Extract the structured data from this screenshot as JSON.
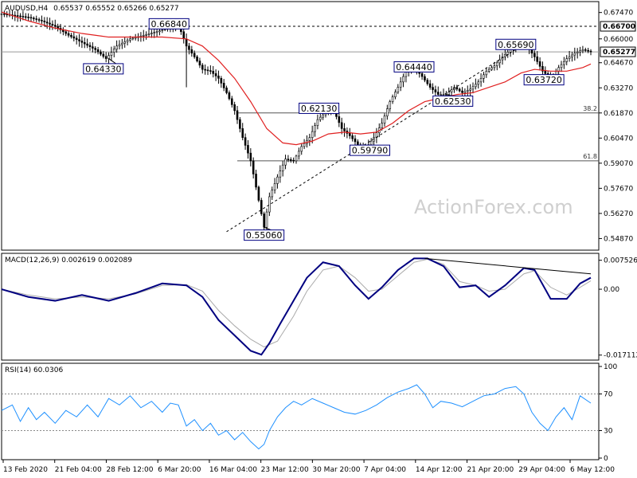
{
  "chart_data": {
    "type": "candlestick",
    "symbol": "AUDUSD,H4",
    "ohlc_header": "0.65537 0.65552 0.65266 0.65277",
    "watermark": "ActionForex.com",
    "x_ticks": [
      "13 Feb 2020",
      "21 Feb 04:00",
      "28 Feb 12:00",
      "6 Mar 20:00",
      "16 Mar 04:00",
      "23 Mar 12:00",
      "30 Mar 20:00",
      "7 Apr 04:00",
      "14 Apr 12:00",
      "21 Apr 20:00",
      "29 Apr 04:00",
      "6 May 12:00"
    ],
    "price_panel": {
      "ylim": [
        0.544,
        0.679
      ],
      "y_ticks": [
        "0.67470",
        "0.66000",
        "0.64670",
        "0.63270",
        "0.61870",
        "0.60470",
        "0.59070",
        "0.57670",
        "0.56270",
        "0.54870"
      ],
      "y_tick_values": [
        0.6747,
        0.66,
        0.6467,
        0.6327,
        0.6187,
        0.6047,
        0.5907,
        0.5767,
        0.5627,
        0.5487
      ],
      "current_price": "0.65277",
      "current_value": 0.65277,
      "resistance_label": "0.66700",
      "resistance_value": 0.667,
      "fib_levels": [
        {
          "label": "38.2",
          "value": 0.6187
        },
        {
          "label": "61.8",
          "value": 0.592
        }
      ],
      "close_path": [
        [
          0,
          0.674
        ],
        [
          10,
          0.673
        ],
        [
          20,
          0.672
        ],
        [
          30,
          0.67
        ],
        [
          40,
          0.667
        ],
        [
          50,
          0.662
        ],
        [
          60,
          0.658
        ],
        [
          70,
          0.654
        ],
        [
          78,
          0.649
        ],
        [
          86,
          0.656
        ],
        [
          96,
          0.66
        ],
        [
          106,
          0.662
        ],
        [
          116,
          0.664
        ],
        [
          124,
          0.666
        ],
        [
          132,
          0.668
        ],
        [
          138,
          0.656
        ],
        [
          144,
          0.65
        ],
        [
          150,
          0.643
        ],
        [
          156,
          0.642
        ],
        [
          162,
          0.638
        ],
        [
          168,
          0.63
        ],
        [
          174,
          0.62
        ],
        [
          180,
          0.605
        ],
        [
          186,
          0.592
        ],
        [
          192,
          0.57
        ],
        [
          196,
          0.555
        ],
        [
          200,
          0.572
        ],
        [
          206,
          0.583
        ],
        [
          212,
          0.593
        ],
        [
          218,
          0.592
        ],
        [
          224,
          0.6
        ],
        [
          230,
          0.605
        ],
        [
          236,
          0.615
        ],
        [
          242,
          0.619
        ],
        [
          248,
          0.62
        ],
        [
          254,
          0.61
        ],
        [
          260,
          0.606
        ],
        [
          266,
          0.601
        ],
        [
          272,
          0.599
        ],
        [
          278,
          0.605
        ],
        [
          284,
          0.613
        ],
        [
          290,
          0.625
        ],
        [
          296,
          0.633
        ],
        [
          302,
          0.642
        ],
        [
          308,
          0.644
        ],
        [
          314,
          0.639
        ],
        [
          320,
          0.633
        ],
        [
          326,
          0.629
        ],
        [
          332,
          0.629
        ],
        [
          338,
          0.633
        ],
        [
          344,
          0.63
        ],
        [
          350,
          0.632
        ],
        [
          356,
          0.636
        ],
        [
          362,
          0.642
        ],
        [
          368,
          0.645
        ],
        [
          374,
          0.65
        ],
        [
          380,
          0.654
        ],
        [
          386,
          0.657
        ],
        [
          392,
          0.656
        ],
        [
          398,
          0.65
        ],
        [
          404,
          0.642
        ],
        [
          410,
          0.638
        ],
        [
          416,
          0.644
        ],
        [
          422,
          0.649
        ],
        [
          428,
          0.652
        ],
        [
          434,
          0.654
        ],
        [
          440,
          0.6528
        ]
      ],
      "ma_path": [
        [
          0,
          0.675
        ],
        [
          20,
          0.67
        ],
        [
          40,
          0.666
        ],
        [
          60,
          0.663
        ],
        [
          80,
          0.661
        ],
        [
          100,
          0.661
        ],
        [
          120,
          0.661
        ],
        [
          138,
          0.66
        ],
        [
          150,
          0.656
        ],
        [
          162,
          0.648
        ],
        [
          174,
          0.638
        ],
        [
          186,
          0.625
        ],
        [
          198,
          0.61
        ],
        [
          210,
          0.602
        ],
        [
          220,
          0.601
        ],
        [
          232,
          0.603
        ],
        [
          244,
          0.607
        ],
        [
          256,
          0.608
        ],
        [
          268,
          0.607
        ],
        [
          280,
          0.608
        ],
        [
          292,
          0.613
        ],
        [
          304,
          0.62
        ],
        [
          316,
          0.625
        ],
        [
          328,
          0.627
        ],
        [
          340,
          0.629
        ],
        [
          352,
          0.63
        ],
        [
          364,
          0.633
        ],
        [
          376,
          0.636
        ],
        [
          388,
          0.641
        ],
        [
          398,
          0.643
        ],
        [
          410,
          0.642
        ],
        [
          422,
          0.642
        ],
        [
          434,
          0.644
        ],
        [
          440,
          0.646
        ]
      ],
      "trendline": [
        [
          168,
          0.5525
        ],
        [
          388,
          0.656
        ]
      ],
      "annotations": [
        {
          "label": "0.66840",
          "t": 125,
          "value": 0.6684,
          "anchor_t": 132,
          "anchor_v": 0.668
        },
        {
          "label": "0.64330",
          "t": 76,
          "value": 0.6433,
          "anchor_t": 80,
          "anchor_v": 0.649
        },
        {
          "label": "0.55060",
          "t": 196,
          "value": 0.5506,
          "anchor_t": 196,
          "anchor_v": 0.555
        },
        {
          "label": "0.62130",
          "t": 237,
          "value": 0.6213,
          "anchor_t": 242,
          "anchor_v": 0.62
        },
        {
          "label": "0.59790",
          "t": 275,
          "value": 0.5979,
          "anchor_t": 272,
          "anchor_v": 0.599
        },
        {
          "label": "0.64440",
          "t": 308,
          "value": 0.6444,
          "anchor_t": 308,
          "anchor_v": 0.644
        },
        {
          "label": "0.62530",
          "t": 337,
          "value": 0.6253,
          "anchor_t": 332,
          "anchor_v": 0.629
        },
        {
          "label": "0.65690",
          "t": 384,
          "value": 0.6569,
          "anchor_t": 386,
          "anchor_v": 0.657
        },
        {
          "label": "0.63720",
          "t": 405,
          "value": 0.6372,
          "anchor_t": 410,
          "anchor_v": 0.638
        }
      ]
    },
    "macd_panel": {
      "title": "MACD(12,26,9) 0.002619 0.002089",
      "ylim": [
        -0.018,
        0.0085
      ],
      "y_ticks": [
        "0.007526",
        "0.00",
        "-0.017112"
      ],
      "y_tick_values": [
        0.007526,
        0.0,
        -0.017112
      ],
      "macd_path": [
        [
          0,
          0.0
        ],
        [
          20,
          -0.002
        ],
        [
          40,
          -0.003
        ],
        [
          60,
          -0.0015
        ],
        [
          80,
          -0.003
        ],
        [
          100,
          -0.001
        ],
        [
          120,
          0.0015
        ],
        [
          138,
          0.001
        ],
        [
          150,
          -0.002
        ],
        [
          162,
          -0.008
        ],
        [
          174,
          -0.012
        ],
        [
          186,
          -0.016
        ],
        [
          194,
          -0.017
        ],
        [
          200,
          -0.014
        ],
        [
          208,
          -0.009
        ],
        [
          218,
          -0.003
        ],
        [
          228,
          0.003
        ],
        [
          240,
          0.007
        ],
        [
          252,
          0.006
        ],
        [
          264,
          0.001
        ],
        [
          274,
          -0.0025
        ],
        [
          284,
          0.0005
        ],
        [
          296,
          0.005
        ],
        [
          308,
          0.008
        ],
        [
          318,
          0.008
        ],
        [
          330,
          0.006
        ],
        [
          342,
          0.0005
        ],
        [
          354,
          0.001
        ],
        [
          364,
          -0.002
        ],
        [
          376,
          0.001
        ],
        [
          390,
          0.0055
        ],
        [
          398,
          0.005
        ],
        [
          410,
          -0.0025
        ],
        [
          422,
          -0.0025
        ],
        [
          432,
          0.0015
        ],
        [
          440,
          0.003
        ]
      ],
      "signal_path": [
        [
          0,
          0.0
        ],
        [
          20,
          -0.0015
        ],
        [
          40,
          -0.0025
        ],
        [
          60,
          -0.002
        ],
        [
          80,
          -0.0025
        ],
        [
          100,
          -0.0012
        ],
        [
          120,
          0.001
        ],
        [
          138,
          0.0012
        ],
        [
          150,
          -0.0005
        ],
        [
          162,
          -0.0055
        ],
        [
          174,
          -0.0095
        ],
        [
          186,
          -0.013
        ],
        [
          196,
          -0.015
        ],
        [
          206,
          -0.0135
        ],
        [
          218,
          -0.007
        ],
        [
          228,
          -0.0005
        ],
        [
          240,
          0.005
        ],
        [
          252,
          0.006
        ],
        [
          264,
          0.003
        ],
        [
          274,
          -0.0005
        ],
        [
          284,
          0.0
        ],
        [
          296,
          0.0035
        ],
        [
          308,
          0.007
        ],
        [
          318,
          0.0078
        ],
        [
          330,
          0.0065
        ],
        [
          342,
          0.002
        ],
        [
          354,
          0.001
        ],
        [
          364,
          -0.0005
        ],
        [
          376,
          0.0
        ],
        [
          390,
          0.004
        ],
        [
          398,
          0.0048
        ],
        [
          410,
          0.0005
        ],
        [
          422,
          -0.0015
        ],
        [
          432,
          0.0005
        ],
        [
          440,
          0.0022
        ]
      ],
      "trendline": [
        [
          316,
          0.008
        ],
        [
          440,
          0.004
        ]
      ]
    },
    "rsi_panel": {
      "title": "RSI(14) 60.0306",
      "ylim": [
        0,
        100
      ],
      "y_ticks": [
        "100",
        "70",
        "30",
        "0"
      ],
      "y_tick_values": [
        100,
        70,
        30,
        0
      ],
      "levels": [
        70,
        30
      ],
      "rsi_path": [
        [
          0,
          52
        ],
        [
          8,
          58
        ],
        [
          14,
          40
        ],
        [
          20,
          55
        ],
        [
          26,
          42
        ],
        [
          32,
          50
        ],
        [
          40,
          38
        ],
        [
          48,
          52
        ],
        [
          56,
          45
        ],
        [
          64,
          58
        ],
        [
          72,
          45
        ],
        [
          80,
          65
        ],
        [
          88,
          58
        ],
        [
          96,
          68
        ],
        [
          104,
          55
        ],
        [
          112,
          62
        ],
        [
          120,
          50
        ],
        [
          126,
          60
        ],
        [
          132,
          58
        ],
        [
          138,
          35
        ],
        [
          144,
          42
        ],
        [
          150,
          30
        ],
        [
          156,
          38
        ],
        [
          162,
          25
        ],
        [
          168,
          30
        ],
        [
          174,
          20
        ],
        [
          180,
          28
        ],
        [
          186,
          18
        ],
        [
          192,
          10
        ],
        [
          196,
          15
        ],
        [
          200,
          30
        ],
        [
          206,
          45
        ],
        [
          212,
          55
        ],
        [
          218,
          62
        ],
        [
          224,
          58
        ],
        [
          232,
          65
        ],
        [
          240,
          60
        ],
        [
          248,
          55
        ],
        [
          256,
          50
        ],
        [
          264,
          48
        ],
        [
          272,
          52
        ],
        [
          280,
          58
        ],
        [
          288,
          66
        ],
        [
          296,
          72
        ],
        [
          304,
          76
        ],
        [
          310,
          80
        ],
        [
          316,
          70
        ],
        [
          322,
          55
        ],
        [
          328,
          62
        ],
        [
          336,
          60
        ],
        [
          344,
          56
        ],
        [
          352,
          62
        ],
        [
          360,
          68
        ],
        [
          368,
          70
        ],
        [
          376,
          76
        ],
        [
          384,
          78
        ],
        [
          390,
          70
        ],
        [
          396,
          50
        ],
        [
          402,
          38
        ],
        [
          408,
          30
        ],
        [
          414,
          45
        ],
        [
          420,
          55
        ],
        [
          426,
          42
        ],
        [
          432,
          68
        ],
        [
          440,
          60
        ]
      ]
    }
  }
}
